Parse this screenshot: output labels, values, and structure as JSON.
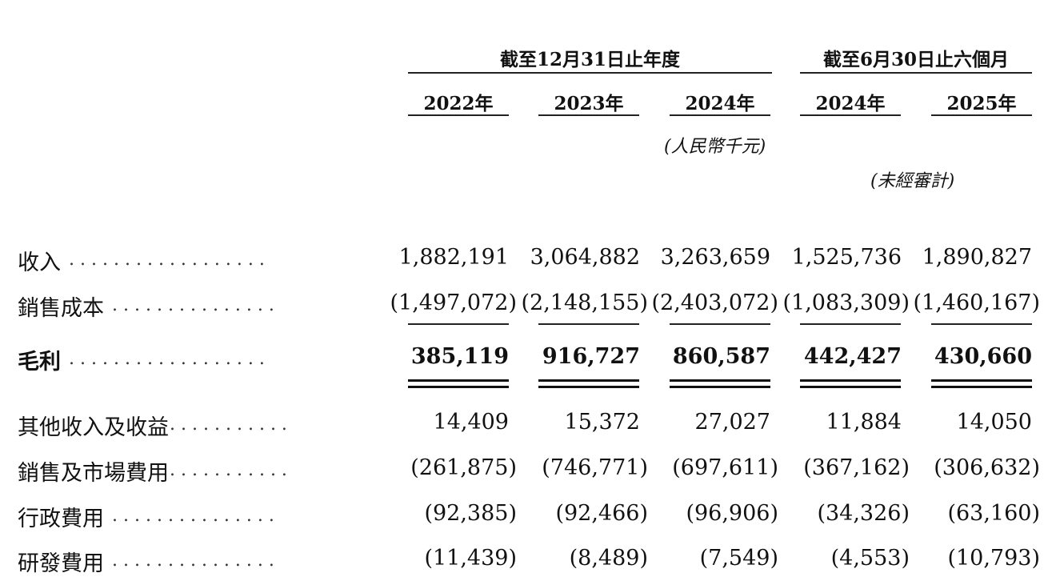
{
  "header": {
    "group_fy": "截至12月31日止年度",
    "group_h1": "截至6月30日止六個月",
    "years": [
      "2022年",
      "2023年",
      "2024年",
      "2024年",
      "2025年"
    ],
    "unit_note": "(人民幣千元)",
    "unaudited_note": "(未經審計)"
  },
  "rows": [
    {
      "label": "收入",
      "leader": "..................",
      "values": [
        "1,882,191",
        "3,064,882",
        "3,263,659",
        "1,525,736",
        "1,890,827"
      ]
    },
    {
      "label": "銷售成本",
      "leader": "...............",
      "values": [
        "(1,497,072)",
        "(2,148,155)",
        "(2,403,072)",
        "(1,083,309)",
        "(1,460,167)"
      ]
    },
    {
      "label": "毛利",
      "leader": "..................",
      "values": [
        "385,119",
        "916,727",
        "860,587",
        "442,427",
        "430,660"
      ]
    },
    {
      "label": "其他收入及收益",
      "leader": "...........",
      "values": [
        "14,409",
        "15,372",
        "27,027",
        "11,884",
        "14,050"
      ]
    },
    {
      "label": "銷售及市場費用",
      "leader": "...........",
      "values": [
        "(261,875)",
        "(746,771)",
        "(697,611)",
        "(367,162)",
        "(306,632)"
      ]
    },
    {
      "label": "行政費用",
      "leader": "...............",
      "values": [
        "(92,385)",
        "(92,466)",
        "(96,906)",
        "(34,326)",
        "(63,160)"
      ]
    },
    {
      "label": "研發費用",
      "leader": "...............",
      "values": [
        "(11,439)",
        "(8,489)",
        "(7,549)",
        "(4,553)",
        "(10,793)"
      ]
    }
  ]
}
